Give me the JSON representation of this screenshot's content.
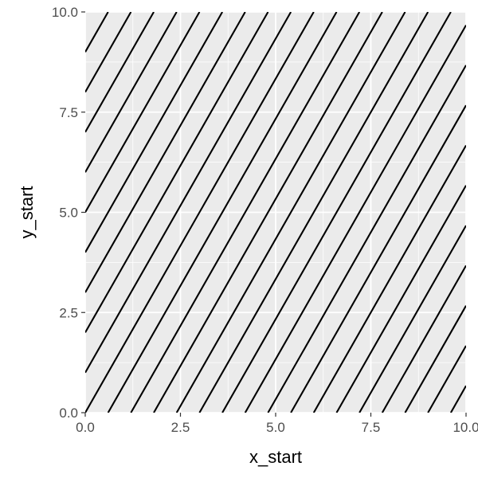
{
  "chart_data": {
    "type": "line",
    "xlabel": "x_start",
    "ylabel": "y_start",
    "xlim": [
      0,
      10
    ],
    "ylim": [
      0,
      10
    ],
    "x_ticks": [
      0,
      2.5,
      5,
      7.5,
      10
    ],
    "y_ticks": [
      0,
      2.5,
      5,
      7.5,
      10
    ],
    "x_tick_labels": [
      "0.0",
      "2.5",
      "5.0",
      "7.5",
      "10.0"
    ],
    "y_tick_labels": [
      "0.0",
      "2.5",
      "5.0",
      "7.5",
      "10.0"
    ],
    "grid": true,
    "panel_color": "#ebebeb",
    "grid_color": "#ffffff",
    "line_color": "#000000",
    "segments": [
      {
        "x": [
          0,
          0.6
        ],
        "y": [
          9,
          10
        ]
      },
      {
        "x": [
          0,
          1.2
        ],
        "y": [
          8,
          10
        ]
      },
      {
        "x": [
          0,
          1.8
        ],
        "y": [
          7,
          10
        ]
      },
      {
        "x": [
          0,
          2.4
        ],
        "y": [
          6,
          10
        ]
      },
      {
        "x": [
          0,
          3.0
        ],
        "y": [
          5,
          10
        ]
      },
      {
        "x": [
          0,
          3.6
        ],
        "y": [
          4,
          10
        ]
      },
      {
        "x": [
          0,
          4.2
        ],
        "y": [
          3,
          10
        ]
      },
      {
        "x": [
          0,
          4.8
        ],
        "y": [
          2,
          10
        ]
      },
      {
        "x": [
          0,
          5.4
        ],
        "y": [
          1,
          10
        ]
      },
      {
        "x": [
          0,
          6.0
        ],
        "y": [
          0,
          10
        ]
      },
      {
        "x": [
          0.6,
          6.6
        ],
        "y": [
          0,
          10
        ]
      },
      {
        "x": [
          1.2,
          7.2
        ],
        "y": [
          0,
          10
        ]
      },
      {
        "x": [
          1.8,
          7.8
        ],
        "y": [
          0,
          10
        ]
      },
      {
        "x": [
          2.4,
          8.4
        ],
        "y": [
          0,
          10
        ]
      },
      {
        "x": [
          3.0,
          9.0
        ],
        "y": [
          0,
          10
        ]
      },
      {
        "x": [
          3.6,
          9.6
        ],
        "y": [
          0,
          10
        ]
      },
      {
        "x": [
          4.2,
          10
        ],
        "y": [
          0,
          9.67
        ]
      },
      {
        "x": [
          4.8,
          10
        ],
        "y": [
          0,
          8.67
        ]
      },
      {
        "x": [
          5.4,
          10
        ],
        "y": [
          0,
          7.67
        ]
      },
      {
        "x": [
          6.0,
          10
        ],
        "y": [
          0,
          6.67
        ]
      },
      {
        "x": [
          6.6,
          10
        ],
        "y": [
          0,
          5.67
        ]
      },
      {
        "x": [
          7.2,
          10
        ],
        "y": [
          0,
          4.67
        ]
      },
      {
        "x": [
          7.8,
          10
        ],
        "y": [
          0,
          3.67
        ]
      },
      {
        "x": [
          8.4,
          10
        ],
        "y": [
          0,
          2.67
        ]
      },
      {
        "x": [
          9.0,
          10
        ],
        "y": [
          0,
          1.67
        ]
      },
      {
        "x": [
          9.6,
          10
        ],
        "y": [
          0,
          0.67
        ]
      }
    ]
  }
}
